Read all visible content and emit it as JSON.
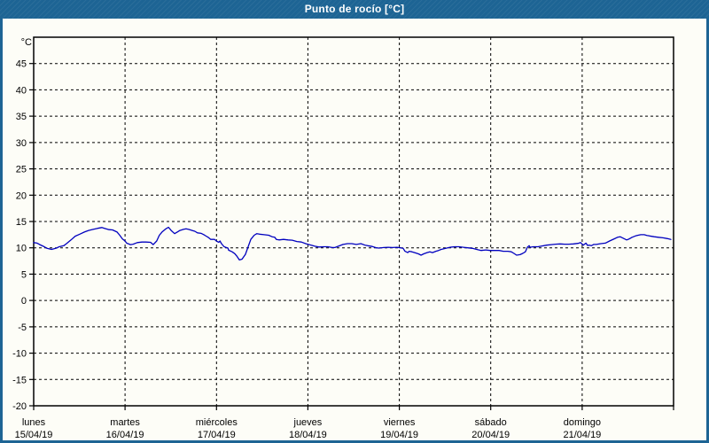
{
  "window": {
    "title": "Punto de rocío [°C]"
  },
  "colors": {
    "titlebar_bg": "#1d6494",
    "page_border": "#1d6494",
    "page_bg": "#fdfdf7",
    "series_line": "#0000bf",
    "grid": "#000000",
    "text": "#000000"
  },
  "chart_data": {
    "type": "line",
    "title": "Punto de rocío [°C]",
    "ylabel": "°C",
    "ylim": [
      -20,
      50
    ],
    "ytick_step": 5,
    "ytick_values": [
      -20,
      -15,
      -10,
      -5,
      0,
      5,
      10,
      15,
      20,
      25,
      30,
      35,
      40,
      45
    ],
    "grid": "dashed",
    "legend": "none",
    "x_range_hours": [
      0,
      168
    ],
    "x_days": [
      {
        "name": "lunes",
        "date": "15/04/19"
      },
      {
        "name": "martes",
        "date": "16/04/19"
      },
      {
        "name": "miércoles",
        "date": "17/04/19"
      },
      {
        "name": "jueves",
        "date": "18/04/19"
      },
      {
        "name": "viernes",
        "date": "19/04/19"
      },
      {
        "name": "sábado",
        "date": "20/04/19"
      },
      {
        "name": "domingo",
        "date": "21/04/19"
      }
    ],
    "series": [
      {
        "name": "Punto de rocío",
        "unit": "°C",
        "points": [
          [
            0,
            11.0
          ],
          [
            0.9,
            10.9
          ],
          [
            1.6,
            10.6
          ],
          [
            2.8,
            10.2
          ],
          [
            3.5,
            9.9
          ],
          [
            4.7,
            9.7
          ],
          [
            5.8,
            9.9
          ],
          [
            6.7,
            10.2
          ],
          [
            7.9,
            10.4
          ],
          [
            8.6,
            10.8
          ],
          [
            9.8,
            11.5
          ],
          [
            10.9,
            12.2
          ],
          [
            12.1,
            12.6
          ],
          [
            13.3,
            13.0
          ],
          [
            14.4,
            13.3
          ],
          [
            15.6,
            13.5
          ],
          [
            16.8,
            13.7
          ],
          [
            17.9,
            13.85
          ],
          [
            18.6,
            13.7
          ],
          [
            19.8,
            13.45
          ],
          [
            20.7,
            13.4
          ],
          [
            21.9,
            13.0
          ],
          [
            22.6,
            12.4
          ],
          [
            23.3,
            11.7
          ],
          [
            24.0,
            11.3
          ],
          [
            24.4,
            10.9
          ],
          [
            25.4,
            10.6
          ],
          [
            26.1,
            10.7
          ],
          [
            27.2,
            11.0
          ],
          [
            28.4,
            11.1
          ],
          [
            29.5,
            11.1
          ],
          [
            30.7,
            11.05
          ],
          [
            31.4,
            10.6
          ],
          [
            32.3,
            11.3
          ],
          [
            33.0,
            12.4
          ],
          [
            33.7,
            13.0
          ],
          [
            34.7,
            13.6
          ],
          [
            35.4,
            13.9
          ],
          [
            36.1,
            13.3
          ],
          [
            37.0,
            12.7
          ],
          [
            37.7,
            13.0
          ],
          [
            38.4,
            13.3
          ],
          [
            39.3,
            13.5
          ],
          [
            40.0,
            13.6
          ],
          [
            40.7,
            13.5
          ],
          [
            41.6,
            13.3
          ],
          [
            42.3,
            13.15
          ],
          [
            43.0,
            12.85
          ],
          [
            44.0,
            12.75
          ],
          [
            44.7,
            12.5
          ],
          [
            45.1,
            12.3
          ],
          [
            45.8,
            12.0
          ],
          [
            46.5,
            11.6
          ],
          [
            47.5,
            11.6
          ],
          [
            48.2,
            11.2
          ],
          [
            48.6,
            11.05
          ],
          [
            48.9,
            11.3
          ],
          [
            49.3,
            10.8
          ],
          [
            50.0,
            10.2
          ],
          [
            51.0,
            9.95
          ],
          [
            51.2,
            9.55
          ],
          [
            52.1,
            9.25
          ],
          [
            52.8,
            8.9
          ],
          [
            53.3,
            8.45
          ],
          [
            54.0,
            7.7
          ],
          [
            54.7,
            7.85
          ],
          [
            55.6,
            8.75
          ],
          [
            56.3,
            10.2
          ],
          [
            57.0,
            11.6
          ],
          [
            57.9,
            12.4
          ],
          [
            58.6,
            12.7
          ],
          [
            59.3,
            12.6
          ],
          [
            60.5,
            12.5
          ],
          [
            61.7,
            12.4
          ],
          [
            62.6,
            12.1
          ],
          [
            63.3,
            12.0
          ],
          [
            63.7,
            11.6
          ],
          [
            64.4,
            11.5
          ],
          [
            65.6,
            11.6
          ],
          [
            66.8,
            11.5
          ],
          [
            67.9,
            11.45
          ],
          [
            69.1,
            11.2
          ],
          [
            70.3,
            11.1
          ],
          [
            71.4,
            10.8
          ],
          [
            72.1,
            10.65
          ],
          [
            73.1,
            10.45
          ],
          [
            73.8,
            10.3
          ],
          [
            74.9,
            10.15
          ],
          [
            76.1,
            10.2
          ],
          [
            77.2,
            10.2
          ],
          [
            78.4,
            10.05
          ],
          [
            79.1,
            10.05
          ],
          [
            80.0,
            10.3
          ],
          [
            81.2,
            10.65
          ],
          [
            82.4,
            10.8
          ],
          [
            83.5,
            10.8
          ],
          [
            84.7,
            10.65
          ],
          [
            85.9,
            10.8
          ],
          [
            87.0,
            10.5
          ],
          [
            87.7,
            10.4
          ],
          [
            88.9,
            10.25
          ],
          [
            90.0,
            10.0
          ],
          [
            90.7,
            9.95
          ],
          [
            91.9,
            10.05
          ],
          [
            93.1,
            10.1
          ],
          [
            94.2,
            10.05
          ],
          [
            95.4,
            10.1
          ],
          [
            96.3,
            10.0
          ],
          [
            97.0,
            9.9
          ],
          [
            97.5,
            9.35
          ],
          [
            98.2,
            9.1
          ],
          [
            98.6,
            9.35
          ],
          [
            99.3,
            9.25
          ],
          [
            100.0,
            9.1
          ],
          [
            101.0,
            8.85
          ],
          [
            101.7,
            8.6
          ],
          [
            102.4,
            8.85
          ],
          [
            103.3,
            9.1
          ],
          [
            104.0,
            9.25
          ],
          [
            104.7,
            9.1
          ],
          [
            105.6,
            9.35
          ],
          [
            106.3,
            9.5
          ],
          [
            107.0,
            9.7
          ],
          [
            108.2,
            9.9
          ],
          [
            109.3,
            10.1
          ],
          [
            110.5,
            10.2
          ],
          [
            111.7,
            10.2
          ],
          [
            112.8,
            10.1
          ],
          [
            114.0,
            10.0
          ],
          [
            115.2,
            9.9
          ],
          [
            116.3,
            9.7
          ],
          [
            117.5,
            9.5
          ],
          [
            118.7,
            9.6
          ],
          [
            119.8,
            9.5
          ],
          [
            121.0,
            9.5
          ],
          [
            122.2,
            9.5
          ],
          [
            123.3,
            9.35
          ],
          [
            124.5,
            9.35
          ],
          [
            125.4,
            9.25
          ],
          [
            126.1,
            8.95
          ],
          [
            126.8,
            8.6
          ],
          [
            127.7,
            8.7
          ],
          [
            128.4,
            8.95
          ],
          [
            129.1,
            9.25
          ],
          [
            129.6,
            10.1
          ],
          [
            130.1,
            10.4
          ],
          [
            130.3,
            10.1
          ],
          [
            131.2,
            10.2
          ],
          [
            132.4,
            10.2
          ],
          [
            133.5,
            10.35
          ],
          [
            134.7,
            10.5
          ],
          [
            135.9,
            10.6
          ],
          [
            137.0,
            10.7
          ],
          [
            138.2,
            10.75
          ],
          [
            139.4,
            10.7
          ],
          [
            140.5,
            10.7
          ],
          [
            141.7,
            10.75
          ],
          [
            142.9,
            10.85
          ],
          [
            143.6,
            11.0
          ],
          [
            144.3,
            10.5
          ],
          [
            145.0,
            10.9
          ],
          [
            145.4,
            10.45
          ],
          [
            145.9,
            10.5
          ],
          [
            146.4,
            10.4
          ],
          [
            147.0,
            10.65
          ],
          [
            147.7,
            10.65
          ],
          [
            148.9,
            10.8
          ],
          [
            150.1,
            10.9
          ],
          [
            151.2,
            11.3
          ],
          [
            152.4,
            11.7
          ],
          [
            153.3,
            12.0
          ],
          [
            154.0,
            12.1
          ],
          [
            154.7,
            11.85
          ],
          [
            155.7,
            11.5
          ],
          [
            156.4,
            11.7
          ],
          [
            157.1,
            12.0
          ],
          [
            158.0,
            12.25
          ],
          [
            158.7,
            12.4
          ],
          [
            159.4,
            12.5
          ],
          [
            160.3,
            12.5
          ],
          [
            161.0,
            12.35
          ],
          [
            161.7,
            12.25
          ],
          [
            162.9,
            12.1
          ],
          [
            164.0,
            12.0
          ],
          [
            165.2,
            11.9
          ],
          [
            166.4,
            11.75
          ],
          [
            167.3,
            11.6
          ]
        ]
      }
    ]
  }
}
